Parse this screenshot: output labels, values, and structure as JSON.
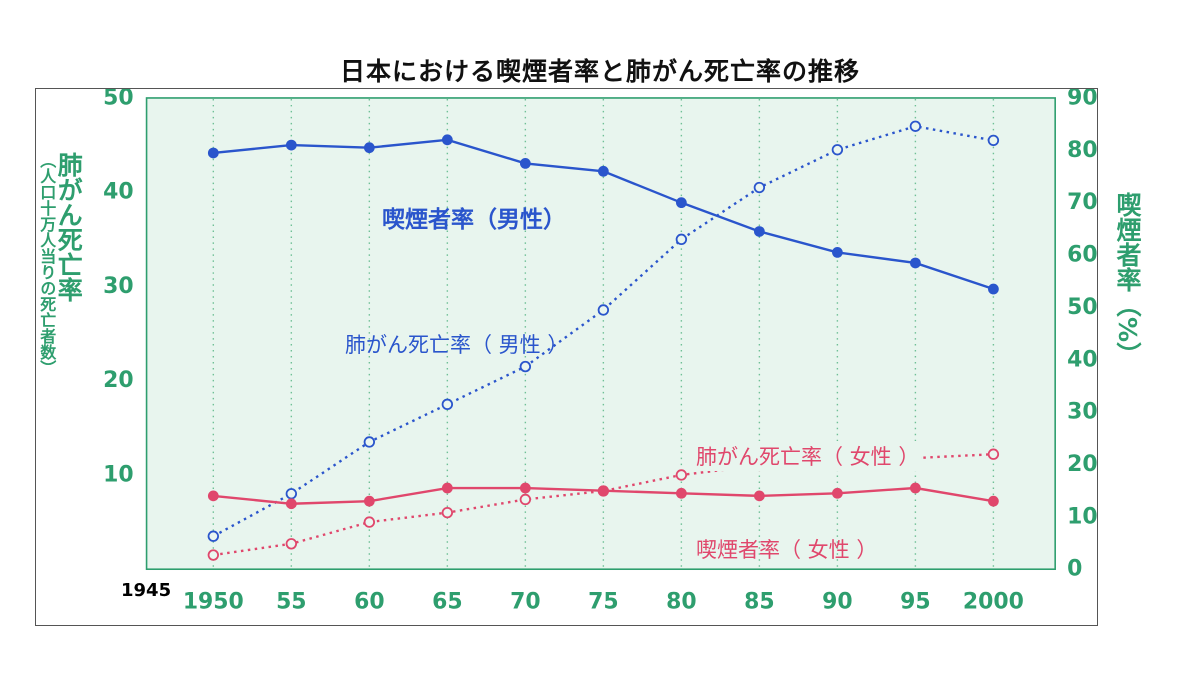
{
  "title": "日本における喫煙者率と肺がん死亡率の推移",
  "axes": {
    "left_label_main": "肺がん死亡率",
    "left_label_sub": "（人口十万人当りの死亡者数）",
    "right_label": "喫煙者率（%）",
    "x_prefix_label": "1945",
    "x_tick_labels": [
      "1950",
      "55",
      "60",
      "65",
      "70",
      "75",
      "80",
      "85",
      "90",
      "95",
      "2000"
    ],
    "left_ticks": [
      50,
      40,
      30,
      20,
      10
    ],
    "right_ticks": [
      90,
      80,
      70,
      60,
      50,
      40,
      30,
      20,
      10,
      0
    ]
  },
  "series_labels": {
    "male_smoking": "喫煙者率（男性）",
    "male_lung": "肺がん死亡率（ 男性 ）",
    "female_lung": "肺がん死亡率（ 女性 ）",
    "female_smoking": "喫煙者率（ 女性 ）"
  },
  "colors": {
    "axis_green": "#2E9E6E",
    "grid_green": "#6FC096",
    "blue": "#2A55CC",
    "red": "#E0476C",
    "plot_bg": "#E8F5EE",
    "title_black": "#111111"
  },
  "chart_data": {
    "type": "line",
    "title": "日本における喫煙者率と肺がん死亡率の推移",
    "x": [
      1950,
      1955,
      1960,
      1965,
      1970,
      1975,
      1980,
      1985,
      1990,
      1995,
      2000
    ],
    "x_tick_labels": [
      "1950",
      "55",
      "60",
      "65",
      "70",
      "75",
      "80",
      "85",
      "90",
      "95",
      "2000"
    ],
    "left_axis": {
      "label": "肺がん死亡率（人口十万人当りの死亡者数）",
      "range": [
        0,
        50
      ],
      "ticks": [
        10,
        20,
        30,
        40,
        50
      ]
    },
    "right_axis": {
      "label": "喫煙者率（%）",
      "range": [
        0,
        90
      ],
      "ticks": [
        0,
        10,
        20,
        30,
        40,
        50,
        60,
        70,
        80,
        90
      ]
    },
    "grid": "vertical-dotted",
    "legend": "inline-labels",
    "series": [
      {
        "id": "male_smoking",
        "name": "喫煙者率（男性）",
        "axis": "right",
        "line": "solid",
        "marker": "filled-circle",
        "color": "#2A55CC",
        "values": [
          79.5,
          81,
          80.5,
          82,
          77.5,
          76,
          70,
          64.5,
          60.5,
          58.5,
          53.5
        ]
      },
      {
        "id": "male_lung",
        "name": "肺がん死亡率（男性）",
        "axis": "left",
        "line": "dotted",
        "marker": "open-circle",
        "color": "#2A55CC",
        "values": [
          3.5,
          8,
          13.5,
          17.5,
          21.5,
          27.5,
          35,
          40.5,
          44.5,
          47,
          45.5
        ]
      },
      {
        "id": "female_lung",
        "name": "肺がん死亡率（女性）",
        "axis": "left",
        "line": "dotted",
        "marker": "open-circle",
        "color": "#E0476C",
        "values": [
          1.5,
          2.7,
          5,
          6,
          7.4,
          8.3,
          10,
          11,
          11.4,
          11.8,
          12.2
        ]
      },
      {
        "id": "female_smoking",
        "name": "喫煙者率（女性）",
        "axis": "right",
        "line": "solid",
        "marker": "filled-circle",
        "color": "#E0476C",
        "values": [
          14,
          12.5,
          13,
          15.5,
          15.5,
          15,
          14.5,
          14,
          14.5,
          15.5,
          13
        ]
      }
    ]
  }
}
